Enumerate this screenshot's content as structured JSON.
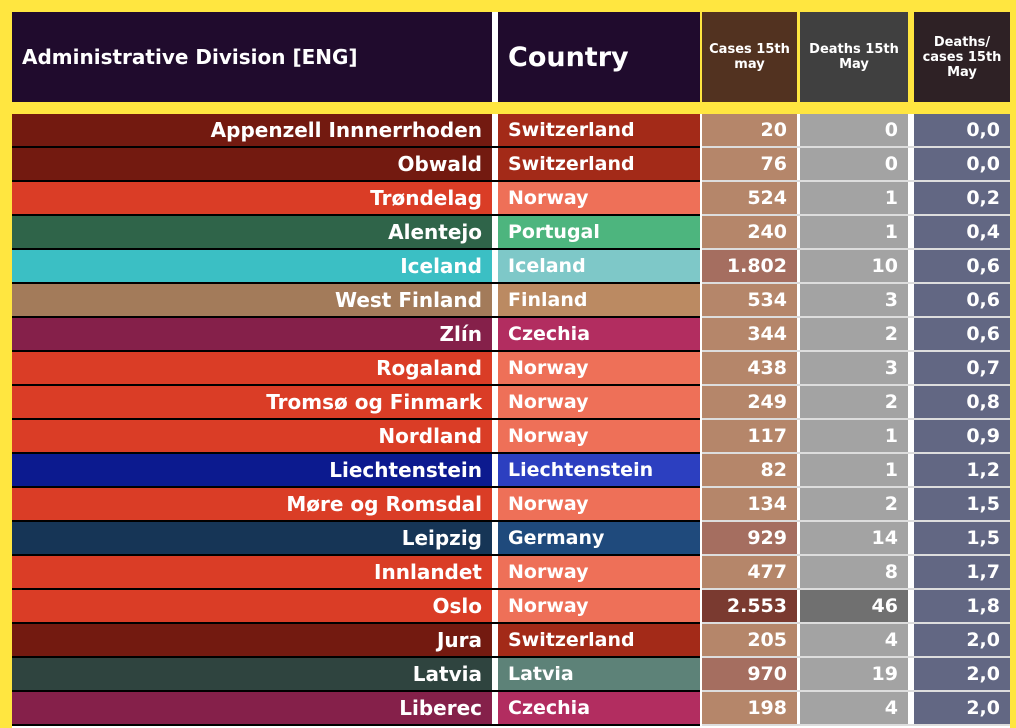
{
  "header": {
    "admin": "Administrative Division [ENG]",
    "country": "Country",
    "cases": "Cases 15th may",
    "deaths": "Deaths 15th May",
    "ratio": "Deaths/ cases 15th May"
  },
  "rows": [
    {
      "admin": "Appenzell Innnerrhoden",
      "country": "Switzerland",
      "cases": "20",
      "deaths": "0",
      "ratio": "0,0",
      "ac": "#731a10",
      "cc": "#a32a18",
      "kc": "#b5866a",
      "dc": "#a3a3a3"
    },
    {
      "admin": "Obwald",
      "country": "Switzerland",
      "cases": "76",
      "deaths": "0",
      "ratio": "0,0",
      "ac": "#731a10",
      "cc": "#a32a18",
      "kc": "#b5866a",
      "dc": "#a3a3a3"
    },
    {
      "admin": "Trøndelag",
      "country": "Norway",
      "cases": "524",
      "deaths": "1",
      "ratio": "0,2",
      "ac": "#da3d26",
      "cc": "#ee7058",
      "kc": "#b5866a",
      "dc": "#a3a3a3"
    },
    {
      "admin": "Alentejo",
      "country": "Portugal",
      "cases": "240",
      "deaths": "1",
      "ratio": "0,4",
      "ac": "#2f6449",
      "cc": "#4db57e",
      "kc": "#b5866a",
      "dc": "#a3a3a3"
    },
    {
      "admin": "Iceland",
      "country": "Iceland",
      "cases": "1.802",
      "deaths": "10",
      "ratio": "0,6",
      "ac": "#3bbfc4",
      "cc": "#7ec8c8",
      "kc": "#a56e60",
      "dc": "#a3a3a3"
    },
    {
      "admin": "West Finland",
      "country": "Finland",
      "cases": "534",
      "deaths": "3",
      "ratio": "0,6",
      "ac": "#a37b5a",
      "cc": "#bb8a62",
      "kc": "#b5866a",
      "dc": "#a3a3a3"
    },
    {
      "admin": "Zlín",
      "country": "Czechia",
      "cases": "344",
      "deaths": "2",
      "ratio": "0,6",
      "ac": "#85204a",
      "cc": "#b22d60",
      "kc": "#b5866a",
      "dc": "#a3a3a3"
    },
    {
      "admin": "Rogaland",
      "country": "Norway",
      "cases": "438",
      "deaths": "3",
      "ratio": "0,7",
      "ac": "#da3d26",
      "cc": "#ee7058",
      "kc": "#b5866a",
      "dc": "#a3a3a3"
    },
    {
      "admin": "Tromsø og Finmark",
      "country": "Norway",
      "cases": "249",
      "deaths": "2",
      "ratio": "0,8",
      "ac": "#da3d26",
      "cc": "#ee7058",
      "kc": "#b5866a",
      "dc": "#a3a3a3"
    },
    {
      "admin": "Nordland",
      "country": "Norway",
      "cases": "117",
      "deaths": "1",
      "ratio": "0,9",
      "ac": "#da3d26",
      "cc": "#ee7058",
      "kc": "#b5866a",
      "dc": "#a3a3a3"
    },
    {
      "admin": "Liechtenstein",
      "country": "Liechtenstein",
      "cases": "82",
      "deaths": "1",
      "ratio": "1,2",
      "ac": "#0c1a8f",
      "cc": "#2c3fc0",
      "kc": "#b5866a",
      "dc": "#a3a3a3"
    },
    {
      "admin": "Møre og Romsdal",
      "country": "Norway",
      "cases": "134",
      "deaths": "2",
      "ratio": "1,5",
      "ac": "#da3d26",
      "cc": "#ee7058",
      "kc": "#b5866a",
      "dc": "#a3a3a3"
    },
    {
      "admin": "Leipzig",
      "country": "Germany",
      "cases": "929",
      "deaths": "14",
      "ratio": "1,5",
      "ac": "#163556",
      "cc": "#1f4a7c",
      "kc": "#a56e60",
      "dc": "#a3a3a3"
    },
    {
      "admin": "Innlandet",
      "country": "Norway",
      "cases": "477",
      "deaths": "8",
      "ratio": "1,7",
      "ac": "#da3d26",
      "cc": "#ee7058",
      "kc": "#b5866a",
      "dc": "#a3a3a3"
    },
    {
      "admin": "Oslo",
      "country": "Norway",
      "cases": "2.553",
      "deaths": "46",
      "ratio": "1,8",
      "ac": "#da3d26",
      "cc": "#ee7058",
      "kc": "#7a3a30",
      "dc": "#707070"
    },
    {
      "admin": "Jura",
      "country": "Switzerland",
      "cases": "205",
      "deaths": "4",
      "ratio": "2,0",
      "ac": "#731a10",
      "cc": "#a32a18",
      "kc": "#b5866a",
      "dc": "#a3a3a3"
    },
    {
      "admin": "Latvia",
      "country": "Latvia",
      "cases": "970",
      "deaths": "19",
      "ratio": "2,0",
      "ac": "#2f443f",
      "cc": "#5d8278",
      "kc": "#a56e60",
      "dc": "#a3a3a3"
    },
    {
      "admin": "Liberec",
      "country": "Czechia",
      "cases": "198",
      "deaths": "4",
      "ratio": "2,0",
      "ac": "#85204a",
      "cc": "#b22d60",
      "kc": "#b5866a",
      "dc": "#a3a3a3"
    }
  ]
}
